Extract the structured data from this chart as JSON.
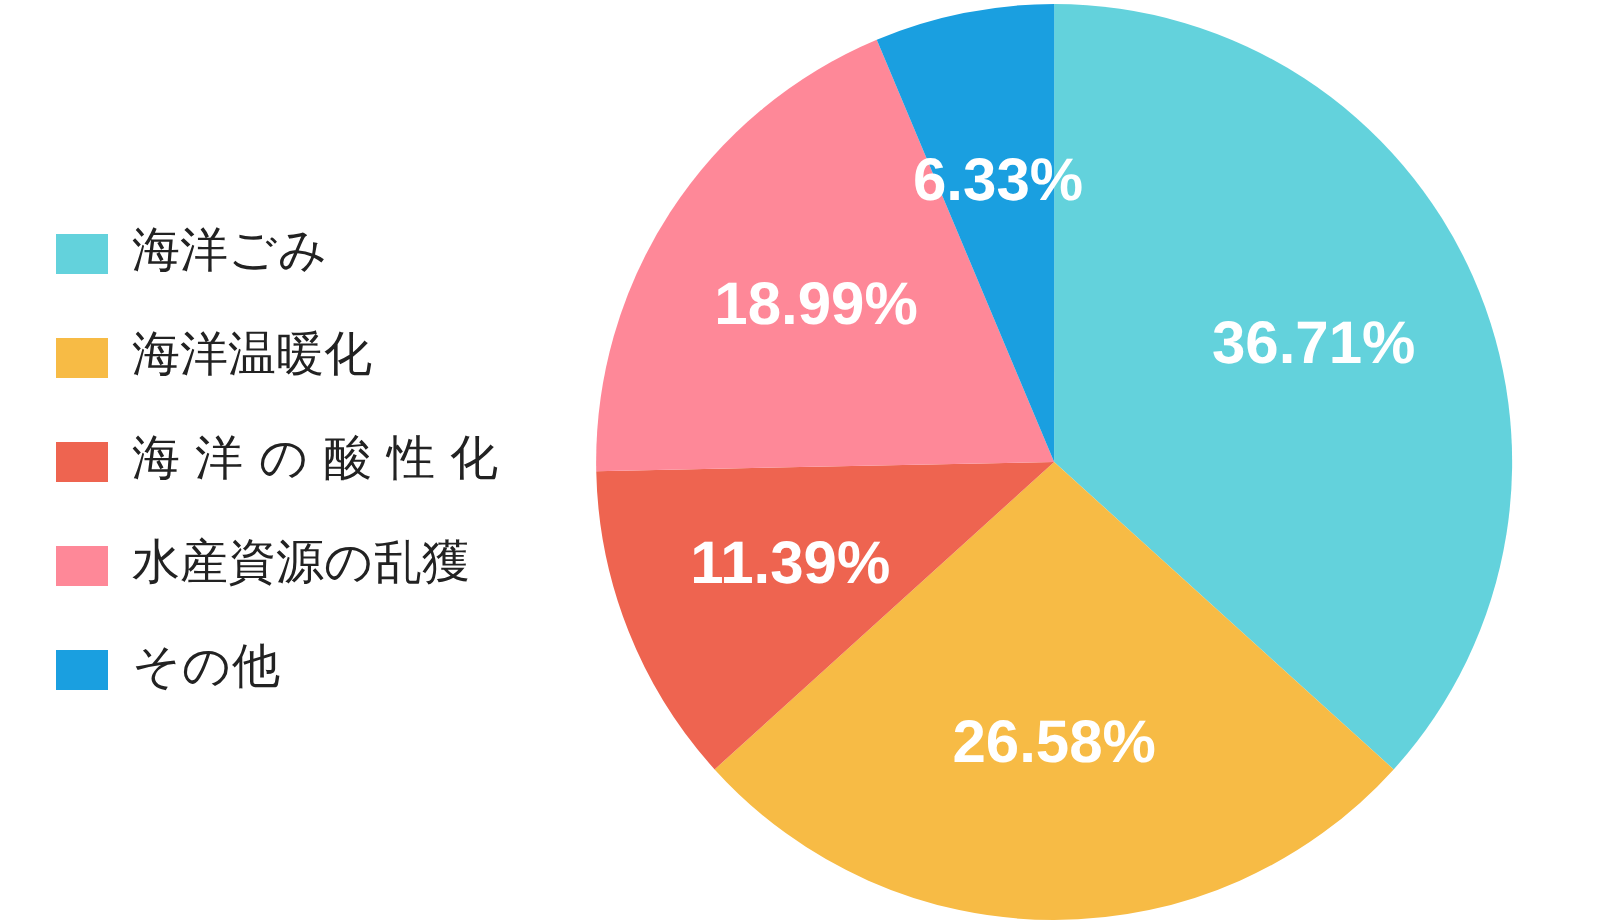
{
  "chart_data": {
    "type": "pie",
    "categories": [
      "海洋ごみ",
      "海洋温暖化",
      "海 洋 の 酸 性 化",
      "水産資源の乱獲",
      "その他"
    ],
    "values": [
      36.71,
      26.58,
      11.39,
      18.99,
      6.33
    ],
    "colors": [
      "#63d2dc",
      "#f7bb45",
      "#ee6450",
      "#fe8898",
      "#1a9fe0"
    ],
    "value_labels": [
      "36.71%",
      "26.58%",
      "11.39%",
      "18.99%",
      "6.33%"
    ],
    "legend": "left"
  }
}
